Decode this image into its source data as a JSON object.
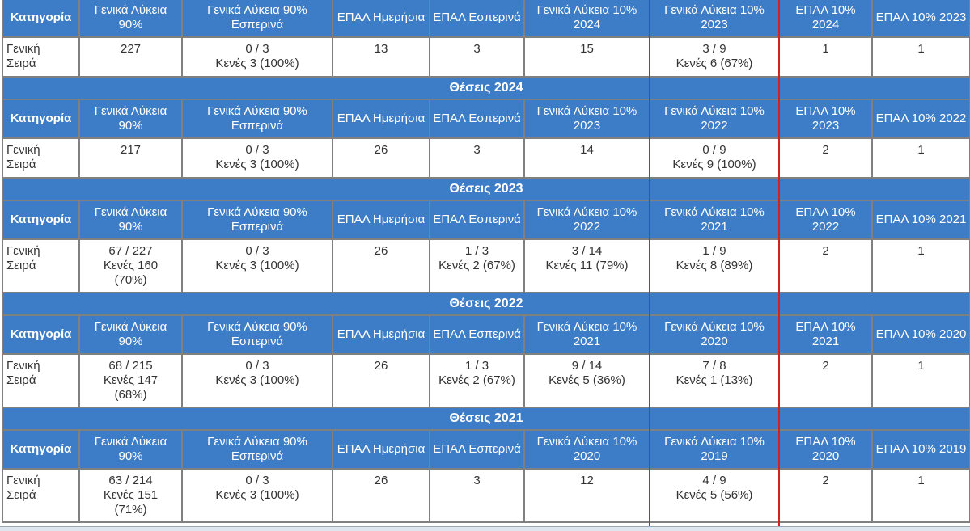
{
  "blocks": [
    {
      "section_title": null,
      "headers": [
        "Κατηγορία",
        "Γενικά Λύκεια 90%",
        "Γενικά Λύκεια 90% Εσπερινά",
        "ΕΠΑΛ Ημερήσια",
        "ΕΠΑΛ Εσπερινά",
        "Γενικά Λύκεια 10% 2024",
        "Γενικά Λύκεια 10% 2023",
        "ΕΠΑΛ 10% 2024",
        "ΕΠΑΛ 10% 2023"
      ],
      "row": [
        [
          "Γενική",
          "Σειρά"
        ],
        [
          "227"
        ],
        [
          "0 / 3",
          "Κενές 3 (100%)"
        ],
        [
          "13"
        ],
        [
          "3"
        ],
        [
          "15"
        ],
        [
          "3 / 9",
          "Κενές 6 (67%)"
        ],
        [
          "1"
        ],
        [
          "1"
        ]
      ]
    },
    {
      "section_title": "Θέσεις 2024",
      "headers": [
        "Κατηγορία",
        "Γενικά Λύκεια 90%",
        "Γενικά Λύκεια 90% Εσπερινά",
        "ΕΠΑΛ Ημερήσια",
        "ΕΠΑΛ Εσπερινά",
        "Γενικά Λύκεια 10% 2023",
        "Γενικά Λύκεια 10% 2022",
        "ΕΠΑΛ 10% 2023",
        "ΕΠΑΛ 10% 2022"
      ],
      "row": [
        [
          "Γενική",
          "Σειρά"
        ],
        [
          "217"
        ],
        [
          "0 / 3",
          "Κενές 3 (100%)"
        ],
        [
          "26"
        ],
        [
          "3"
        ],
        [
          "14"
        ],
        [
          "0 / 9",
          "Κενές 9 (100%)"
        ],
        [
          "2"
        ],
        [
          "1"
        ]
      ]
    },
    {
      "section_title": "Θέσεις 2023",
      "headers": [
        "Κατηγορία",
        "Γενικά Λύκεια 90%",
        "Γενικά Λύκεια 90% Εσπερινά",
        "ΕΠΑΛ Ημερήσια",
        "ΕΠΑΛ Εσπερινά",
        "Γενικά Λύκεια 10% 2022",
        "Γενικά Λύκεια 10% 2021",
        "ΕΠΑΛ 10% 2022",
        "ΕΠΑΛ 10% 2021"
      ],
      "row": [
        [
          "Γενική",
          "Σειρά"
        ],
        [
          "67 / 227",
          "Κενές 160",
          "(70%)"
        ],
        [
          "0 / 3",
          "Κενές 3 (100%)"
        ],
        [
          "26"
        ],
        [
          "1 / 3",
          "Κενές 2 (67%)"
        ],
        [
          "3 / 14",
          "Κενές 11 (79%)"
        ],
        [
          "1 / 9",
          "Κενές 8 (89%)"
        ],
        [
          "2"
        ],
        [
          "1"
        ]
      ]
    },
    {
      "section_title": "Θέσεις 2022",
      "headers": [
        "Κατηγορία",
        "Γενικά Λύκεια 90%",
        "Γενικά Λύκεια 90% Εσπερινά",
        "ΕΠΑΛ Ημερήσια",
        "ΕΠΑΛ Εσπερινά",
        "Γενικά Λύκεια 10% 2021",
        "Γενικά Λύκεια 10% 2020",
        "ΕΠΑΛ 10% 2021",
        "ΕΠΑΛ 10% 2020"
      ],
      "row": [
        [
          "Γενική",
          "Σειρά"
        ],
        [
          "68 / 215",
          "Κενές 147",
          "(68%)"
        ],
        [
          "0 / 3",
          "Κενές 3 (100%)"
        ],
        [
          "26"
        ],
        [
          "1 / 3",
          "Κενές 2 (67%)"
        ],
        [
          "9 / 14",
          "Κενές 5 (36%)"
        ],
        [
          "7 / 8",
          "Κενές 1 (13%)"
        ],
        [
          "2"
        ],
        [
          "1"
        ]
      ]
    },
    {
      "section_title": "Θέσεις 2021",
      "headers": [
        "Κατηγορία",
        "Γενικά Λύκεια 90%",
        "Γενικά Λύκεια 90% Εσπερινά",
        "ΕΠΑΛ Ημερήσια",
        "ΕΠΑΛ Εσπερινά",
        "Γενικά Λύκεια 10% 2020",
        "Γενικά Λύκεια 10% 2019",
        "ΕΠΑΛ 10% 2020",
        "ΕΠΑΛ 10% 2019"
      ],
      "row": [
        [
          "Γενική",
          "Σειρά"
        ],
        [
          "63 / 214",
          "Κενές 151",
          "(71%)"
        ],
        [
          "0 / 3",
          "Κενές 3 (100%)"
        ],
        [
          "26"
        ],
        [
          "3"
        ],
        [
          "12"
        ],
        [
          "4 / 9",
          "Κενές 5 (56%)"
        ],
        [
          "2"
        ],
        [
          "1"
        ]
      ]
    }
  ],
  "colors": {
    "header_bg": "#3d7cc7",
    "highlight": "#d81e1e",
    "border": "#808080"
  }
}
